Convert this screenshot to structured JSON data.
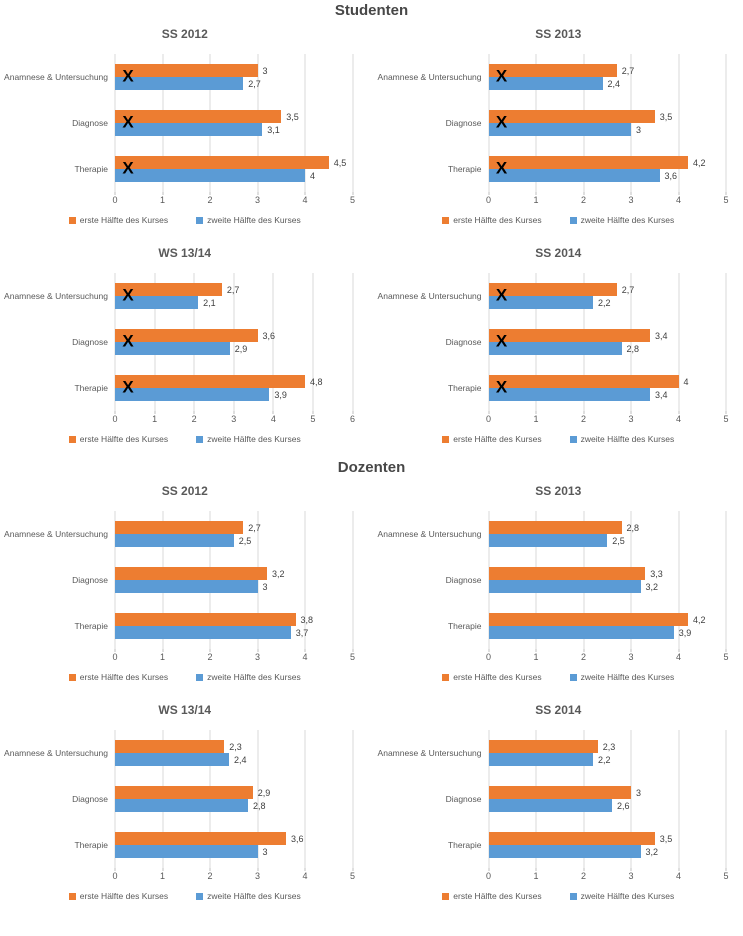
{
  "sections": [
    {
      "title": "Studenten",
      "chart_indexes": [
        0,
        1,
        2,
        3
      ]
    },
    {
      "title": "Dozenten",
      "chart_indexes": [
        4,
        5,
        6,
        7
      ]
    }
  ],
  "colors": {
    "erste_haelfte": "#ED7D31",
    "zweite_haelfte": "#5B9BD5",
    "gridline": "#D9D9D9",
    "heading_text": "#474747",
    "axis_text": "#595959",
    "x_mark": "#000000"
  },
  "chart_data": [
    {
      "type": "bar",
      "orientation": "horizontal",
      "section": "Studenten",
      "title": "SS 2012",
      "categories": [
        "Anamnese & Untersuchung",
        "Diagnose",
        "Therapie"
      ],
      "series": [
        {
          "name": "erste Hälfte des Kurses",
          "color": "#ED7D31",
          "values": [
            3,
            3.5,
            4.5
          ],
          "value_labels": [
            "3",
            "3,5",
            "4,5"
          ]
        },
        {
          "name": "zweite Hälfte des Kurses",
          "color": "#5B9BD5",
          "values": [
            2.7,
            3.1,
            4
          ],
          "value_labels": [
            "2,7",
            "3,1",
            "4"
          ]
        }
      ],
      "xlim": [
        0,
        5
      ],
      "x_ticks": [
        "0",
        "1",
        "2",
        "3",
        "4",
        "5"
      ],
      "grid": true,
      "legend_position": "bottom",
      "category_marks": [
        "X",
        "X",
        "X"
      ]
    },
    {
      "type": "bar",
      "orientation": "horizontal",
      "section": "Studenten",
      "title": "SS 2013",
      "categories": [
        "Anamnese & Untersuchung",
        "Diagnose",
        "Therapie"
      ],
      "series": [
        {
          "name": "erste Hälfte des Kurses",
          "color": "#ED7D31",
          "values": [
            2.7,
            3.5,
            4.2
          ],
          "value_labels": [
            "2,7",
            "3,5",
            "4,2"
          ]
        },
        {
          "name": "zweite Hälfte des Kurses",
          "color": "#5B9BD5",
          "values": [
            2.4,
            3,
            3.6
          ],
          "value_labels": [
            "2,4",
            "3",
            "3,6"
          ]
        }
      ],
      "xlim": [
        0,
        5
      ],
      "x_ticks": [
        "0",
        "1",
        "2",
        "3",
        "4",
        "5"
      ],
      "grid": true,
      "legend_position": "bottom",
      "category_marks": [
        "X",
        "X",
        "X"
      ]
    },
    {
      "type": "bar",
      "orientation": "horizontal",
      "section": "Studenten",
      "title": "WS 13/14",
      "categories": [
        "Anamnese & Untersuchung",
        "Diagnose",
        "Therapie"
      ],
      "series": [
        {
          "name": "erste Hälfte des Kurses",
          "color": "#ED7D31",
          "values": [
            2.7,
            3.6,
            4.8
          ],
          "value_labels": [
            "2,7",
            "3,6",
            "4,8"
          ]
        },
        {
          "name": "zweite Hälfte des Kurses",
          "color": "#5B9BD5",
          "values": [
            2.1,
            2.9,
            3.9
          ],
          "value_labels": [
            "2,1",
            "2,9",
            "3,9"
          ]
        }
      ],
      "xlim": [
        0,
        6
      ],
      "x_ticks": [
        "0",
        "1",
        "2",
        "3",
        "4",
        "5",
        "6"
      ],
      "grid": true,
      "legend_position": "bottom",
      "category_marks": [
        "X",
        "X",
        "X"
      ]
    },
    {
      "type": "bar",
      "orientation": "horizontal",
      "section": "Studenten",
      "title": "SS 2014",
      "categories": [
        "Anamnese & Untersuchung",
        "Diagnose",
        "Therapie"
      ],
      "series": [
        {
          "name": "erste Hälfte des Kurses",
          "color": "#ED7D31",
          "values": [
            2.7,
            3.4,
            4
          ],
          "value_labels": [
            "2,7",
            "3,4",
            "4"
          ]
        },
        {
          "name": "zweite Hälfte des Kurses",
          "color": "#5B9BD5",
          "values": [
            2.2,
            2.8,
            3.4
          ],
          "value_labels": [
            "2,2",
            "2,8",
            "3,4"
          ]
        }
      ],
      "xlim": [
        0,
        5
      ],
      "x_ticks": [
        "0",
        "1",
        "2",
        "3",
        "4",
        "5"
      ],
      "grid": true,
      "legend_position": "bottom",
      "category_marks": [
        "X",
        "X",
        "X"
      ]
    },
    {
      "type": "bar",
      "orientation": "horizontal",
      "section": "Dozenten",
      "title": "SS 2012",
      "categories": [
        "Anamnese & Untersuchung",
        "Diagnose",
        "Therapie"
      ],
      "series": [
        {
          "name": "erste Hälfte des Kurses",
          "color": "#ED7D31",
          "values": [
            2.7,
            3.2,
            3.8
          ],
          "value_labels": [
            "2,7",
            "3,2",
            "3,8"
          ]
        },
        {
          "name": "zweite Hälfte des Kurses",
          "color": "#5B9BD5",
          "values": [
            2.5,
            3,
            3.7
          ],
          "value_labels": [
            "2,5",
            "3",
            "3,7"
          ]
        }
      ],
      "xlim": [
        0,
        5
      ],
      "x_ticks": [
        "0",
        "1",
        "2",
        "3",
        "4",
        "5"
      ],
      "grid": true,
      "legend_position": "bottom",
      "category_marks": null
    },
    {
      "type": "bar",
      "orientation": "horizontal",
      "section": "Dozenten",
      "title": "SS 2013",
      "categories": [
        "Anamnese & Untersuchung",
        "Diagnose",
        "Therapie"
      ],
      "series": [
        {
          "name": "erste Hälfte des Kurses",
          "color": "#ED7D31",
          "values": [
            2.8,
            3.3,
            4.2
          ],
          "value_labels": [
            "2,8",
            "3,3",
            "4,2"
          ]
        },
        {
          "name": "zweite Hälfte des Kurses",
          "color": "#5B9BD5",
          "values": [
            2.5,
            3.2,
            3.9
          ],
          "value_labels": [
            "2,5",
            "3,2",
            "3,9"
          ]
        }
      ],
      "xlim": [
        0,
        5
      ],
      "x_ticks": [
        "0",
        "1",
        "2",
        "3",
        "4",
        "5"
      ],
      "grid": true,
      "legend_position": "bottom",
      "category_marks": null
    },
    {
      "type": "bar",
      "orientation": "horizontal",
      "section": "Dozenten",
      "title": "WS 13/14",
      "categories": [
        "Anamnese & Untersuchung",
        "Diagnose",
        "Therapie"
      ],
      "series": [
        {
          "name": "erste Hälfte des Kurses",
          "color": "#ED7D31",
          "values": [
            2.3,
            2.9,
            3.6
          ],
          "value_labels": [
            "2,3",
            "2,9",
            "3,6"
          ]
        },
        {
          "name": "zweite Hälfte des Kurses",
          "color": "#5B9BD5",
          "values": [
            2.4,
            2.8,
            3
          ],
          "value_labels": [
            "2,4",
            "2,8",
            "3"
          ]
        }
      ],
      "xlim": [
        0,
        5
      ],
      "x_ticks": [
        "0",
        "1",
        "2",
        "3",
        "4",
        "5"
      ],
      "grid": true,
      "legend_position": "bottom",
      "category_marks": null
    },
    {
      "type": "bar",
      "orientation": "horizontal",
      "section": "Dozenten",
      "title": "SS 2014",
      "categories": [
        "Anamnese & Untersuchung",
        "Diagnose",
        "Therapie"
      ],
      "series": [
        {
          "name": "erste Hälfte des Kurses",
          "color": "#ED7D31",
          "values": [
            2.3,
            3,
            3.5
          ],
          "value_labels": [
            "2,3",
            "3",
            "3,5"
          ]
        },
        {
          "name": "zweite Hälfte des Kurses",
          "color": "#5B9BD5",
          "values": [
            2.2,
            2.6,
            3.2
          ],
          "value_labels": [
            "2,2",
            "2,6",
            "3,2"
          ]
        }
      ],
      "xlim": [
        0,
        5
      ],
      "x_ticks": [
        "0",
        "1",
        "2",
        "3",
        "4",
        "5"
      ],
      "grid": true,
      "legend_position": "bottom",
      "category_marks": null
    }
  ]
}
